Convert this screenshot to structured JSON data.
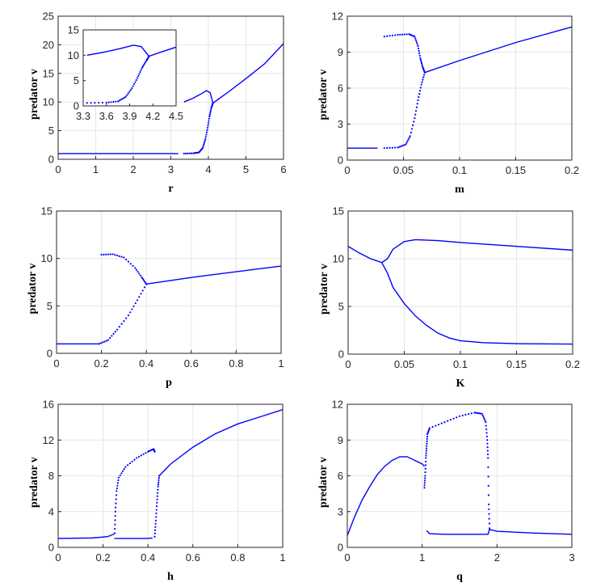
{
  "colors": {
    "series": "#0000ff",
    "axis": "#262626",
    "grid": "#e6e6e6"
  },
  "chart_data": [
    {
      "type": "scatter",
      "xlabel": "r",
      "ylabel": "predator v",
      "xlim": [
        0,
        6
      ],
      "ylim": [
        0,
        25
      ],
      "xticks": [
        "0",
        "1",
        "2",
        "3",
        "4",
        "5",
        "6"
      ],
      "yticks": [
        "0",
        "5",
        "10",
        "15",
        "20",
        "25"
      ],
      "grid": true,
      "series": [
        {
          "values": [
            [
              0,
              1.0
            ],
            [
              3.2,
              1.0
            ]
          ],
          "style": "line"
        },
        {
          "values": [
            [
              3.35,
              10.0
            ],
            [
              3.6,
              10.7
            ],
            [
              3.8,
              11.4
            ],
            [
              3.95,
              12.0
            ],
            [
              4.05,
              11.6
            ],
            [
              4.12,
              9.8
            ]
          ],
          "style": "line"
        },
        {
          "values": [
            [
              3.35,
              1.0
            ],
            [
              3.6,
              1.05
            ],
            [
              3.75,
              1.2
            ],
            [
              3.85,
              2.0
            ],
            [
              3.92,
              3.5
            ],
            [
              3.98,
              5.5
            ],
            [
              4.03,
              7.5
            ],
            [
              4.08,
              9.0
            ],
            [
              4.12,
              9.8
            ]
          ],
          "style": "points"
        },
        {
          "values": [
            [
              4.12,
              9.8
            ],
            [
              4.5,
              11.6
            ],
            [
              5.0,
              14.1
            ],
            [
              5.5,
              16.7
            ],
            [
              6.0,
              20.2
            ]
          ],
          "style": "line"
        }
      ]
    },
    {
      "type": "scatter",
      "inset": true,
      "xlim": [
        3.3,
        4.5
      ],
      "ylim": [
        0,
        15
      ],
      "xticks": [
        "3.3",
        "3.6",
        "3.9",
        "4.2",
        "4.5"
      ],
      "yticks": [
        "0",
        "5",
        "10",
        "15"
      ],
      "grid": false,
      "series": [
        {
          "values": [
            [
              3.35,
              10.0
            ],
            [
              3.6,
              10.7
            ],
            [
              3.8,
              11.4
            ],
            [
              3.95,
              12.0
            ],
            [
              4.05,
              11.7
            ],
            [
              4.15,
              9.8
            ],
            [
              4.3,
              10.6
            ],
            [
              4.5,
              11.6
            ]
          ],
          "style": "line"
        },
        {
          "values": [
            [
              3.35,
              0.6
            ],
            [
              3.6,
              0.65
            ],
            [
              3.75,
              0.9
            ],
            [
              3.85,
              1.8
            ],
            [
              3.93,
              3.5
            ],
            [
              4.0,
              5.5
            ],
            [
              4.06,
              7.5
            ],
            [
              4.12,
              9.0
            ],
            [
              4.15,
              9.8
            ]
          ],
          "style": "points"
        }
      ]
    },
    {
      "type": "scatter",
      "xlabel": "m",
      "ylabel": "predator v",
      "xlim": [
        0,
        0.2
      ],
      "ylim": [
        0,
        12
      ],
      "xticks": [
        "0",
        "0.05",
        "0.1",
        "0.15",
        "0.2"
      ],
      "yticks": [
        "0",
        "3",
        "6",
        "9",
        "12"
      ],
      "grid": true,
      "series": [
        {
          "values": [
            [
              0,
              1.0
            ],
            [
              0.027,
              1.0
            ]
          ],
          "style": "line"
        },
        {
          "values": [
            [
              0.033,
              10.3
            ],
            [
              0.045,
              10.45
            ],
            [
              0.055,
              10.5
            ],
            [
              0.06,
              10.3
            ],
            [
              0.063,
              9.5
            ],
            [
              0.065,
              8.5
            ],
            [
              0.067,
              7.8
            ],
            [
              0.069,
              7.3
            ]
          ],
          "style": "points"
        },
        {
          "values": [
            [
              0.033,
              1.0
            ],
            [
              0.045,
              1.05
            ],
            [
              0.052,
              1.3
            ],
            [
              0.056,
              2.0
            ],
            [
              0.06,
              3.5
            ],
            [
              0.063,
              5.0
            ],
            [
              0.066,
              6.3
            ],
            [
              0.069,
              7.3
            ]
          ],
          "style": "points"
        },
        {
          "values": [
            [
              0.069,
              7.3
            ],
            [
              0.1,
              8.3
            ],
            [
              0.15,
              9.8
            ],
            [
              0.2,
              11.1
            ]
          ],
          "style": "line"
        }
      ]
    },
    {
      "type": "scatter",
      "xlabel": "p",
      "ylabel": "predator v",
      "xlim": [
        0,
        1
      ],
      "ylim": [
        0,
        15
      ],
      "xticks": [
        "0",
        "0.2",
        "0.4",
        "0.6",
        "0.8",
        "1"
      ],
      "yticks": [
        "0",
        "5",
        "10",
        "15"
      ],
      "grid": true,
      "series": [
        {
          "values": [
            [
              0,
              1.0
            ],
            [
              0.19,
              1.0
            ]
          ],
          "style": "line"
        },
        {
          "values": [
            [
              0.2,
              10.4
            ],
            [
              0.25,
              10.45
            ],
            [
              0.3,
              10.1
            ],
            [
              0.35,
              9.0
            ],
            [
              0.38,
              8.0
            ],
            [
              0.4,
              7.3
            ]
          ],
          "style": "points"
        },
        {
          "values": [
            [
              0.19,
              1.0
            ],
            [
              0.23,
              1.4
            ],
            [
              0.27,
              2.5
            ],
            [
              0.32,
              4.0
            ],
            [
              0.36,
              5.6
            ],
            [
              0.4,
              7.3
            ]
          ],
          "style": "points"
        },
        {
          "values": [
            [
              0.4,
              7.3
            ],
            [
              0.6,
              8.0
            ],
            [
              0.8,
              8.6
            ],
            [
              1.0,
              9.2
            ]
          ],
          "style": "line"
        }
      ]
    },
    {
      "type": "scatter",
      "xlabel": "K",
      "ylabel": "predator v",
      "xlim": [
        0,
        0.2
      ],
      "ylim": [
        0,
        15
      ],
      "xticks": [
        "0",
        "0.05",
        "0.1",
        "0.15",
        "0.2"
      ],
      "yticks": [
        "0",
        "5",
        "10",
        "15"
      ],
      "grid": true,
      "series": [
        {
          "values": [
            [
              0,
              11.3
            ],
            [
              0.01,
              10.6
            ],
            [
              0.02,
              10.0
            ],
            [
              0.03,
              9.6
            ],
            [
              0.035,
              10.0
            ],
            [
              0.04,
              11.0
            ],
            [
              0.05,
              11.8
            ],
            [
              0.06,
              12.0
            ],
            [
              0.08,
              11.9
            ],
            [
              0.1,
              11.7
            ],
            [
              0.15,
              11.3
            ],
            [
              0.2,
              10.9
            ]
          ],
          "style": "line"
        },
        {
          "values": [
            [
              0.03,
              9.6
            ],
            [
              0.035,
              8.5
            ],
            [
              0.04,
              7.0
            ],
            [
              0.05,
              5.3
            ],
            [
              0.06,
              4.0
            ],
            [
              0.07,
              3.0
            ],
            [
              0.08,
              2.2
            ],
            [
              0.09,
              1.7
            ],
            [
              0.1,
              1.4
            ],
            [
              0.12,
              1.2
            ],
            [
              0.15,
              1.1
            ],
            [
              0.2,
              1.05
            ]
          ],
          "style": "line"
        }
      ]
    },
    {
      "type": "scatter",
      "xlabel": "h",
      "ylabel": "predator v",
      "xlim": [
        0,
        1
      ],
      "ylim": [
        0,
        16
      ],
      "xticks": [
        "0",
        "0.2",
        "0.4",
        "0.6",
        "0.8",
        "1"
      ],
      "yticks": [
        "0",
        "4",
        "8",
        "12",
        "16"
      ],
      "grid": true,
      "series": [
        {
          "values": [
            [
              0,
              1.0
            ],
            [
              0.15,
              1.05
            ],
            [
              0.22,
              1.2
            ],
            [
              0.25,
              1.5
            ]
          ],
          "style": "line"
        },
        {
          "values": [
            [
              0.25,
              1.0
            ],
            [
              0.3,
              1.0
            ],
            [
              0.35,
              1.0
            ],
            [
              0.4,
              1.0
            ],
            [
              0.42,
              1.05
            ]
          ],
          "style": "line"
        },
        {
          "values": [
            [
              0.252,
              1.6
            ],
            [
              0.255,
              4.0
            ],
            [
              0.26,
              6.3
            ],
            [
              0.27,
              7.8
            ],
            [
              0.3,
              9.0
            ],
            [
              0.35,
              10.0
            ],
            [
              0.4,
              10.7
            ],
            [
              0.425,
              11.0
            ],
            [
              0.43,
              10.7
            ]
          ],
          "style": "points"
        },
        {
          "values": [
            [
              0.43,
              1.2
            ],
            [
              0.435,
              3.0
            ],
            [
              0.44,
              5.0
            ],
            [
              0.445,
              6.8
            ],
            [
              0.45,
              8.0
            ]
          ],
          "style": "points"
        },
        {
          "values": [
            [
              0.45,
              8.0
            ],
            [
              0.5,
              9.3
            ],
            [
              0.6,
              11.2
            ],
            [
              0.7,
              12.7
            ],
            [
              0.8,
              13.8
            ],
            [
              0.9,
              14.6
            ],
            [
              1.0,
              15.4
            ]
          ],
          "style": "line"
        }
      ]
    },
    {
      "type": "scatter",
      "xlabel": "q",
      "ylabel": "predator v",
      "xlim": [
        0,
        3
      ],
      "ylim": [
        0,
        12
      ],
      "xticks": [
        "0",
        "1",
        "2",
        "3"
      ],
      "yticks": [
        "0",
        "3",
        "6",
        "9",
        "12"
      ],
      "grid": true,
      "series": [
        {
          "values": [
            [
              0,
              1.0
            ],
            [
              0.1,
              2.6
            ],
            [
              0.2,
              4.0
            ],
            [
              0.3,
              5.1
            ],
            [
              0.4,
              6.1
            ],
            [
              0.5,
              6.8
            ],
            [
              0.6,
              7.3
            ],
            [
              0.7,
              7.6
            ],
            [
              0.8,
              7.6
            ],
            [
              0.9,
              7.3
            ],
            [
              1.0,
              7.0
            ],
            [
              1.03,
              6.8
            ]
          ],
          "style": "line"
        },
        {
          "values": [
            [
              1.03,
              5.0
            ],
            [
              1.04,
              6.0
            ],
            [
              1.05,
              7.5
            ],
            [
              1.06,
              8.5
            ],
            [
              1.07,
              9.5
            ],
            [
              1.1,
              10.0
            ],
            [
              1.3,
              10.5
            ],
            [
              1.5,
              11.0
            ],
            [
              1.7,
              11.3
            ],
            [
              1.8,
              11.2
            ],
            [
              1.85,
              10.5
            ],
            [
              1.87,
              9.0
            ],
            [
              1.88,
              7.5
            ],
            [
              1.89,
              3.6
            ],
            [
              1.9,
              1.6
            ]
          ],
          "style": "points"
        },
        {
          "values": [
            [
              1.06,
              1.4
            ],
            [
              1.1,
              1.15
            ],
            [
              1.3,
              1.1
            ],
            [
              1.5,
              1.1
            ],
            [
              1.7,
              1.1
            ],
            [
              1.88,
              1.1
            ],
            [
              1.9,
              1.5
            ],
            [
              2.0,
              1.35
            ],
            [
              2.5,
              1.2
            ],
            [
              3.0,
              1.1
            ]
          ],
          "style": "line"
        }
      ]
    }
  ]
}
